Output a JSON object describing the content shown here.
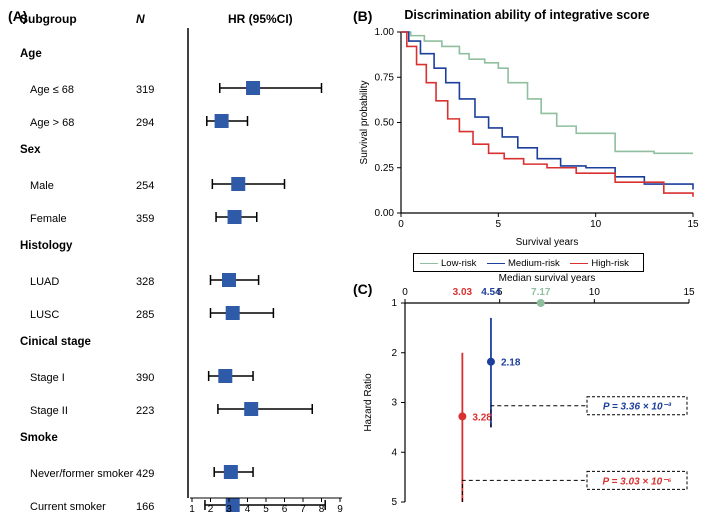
{
  "panelA": {
    "label": "(A)",
    "headers": {
      "subgroup": "Subgroup",
      "n": "N",
      "hr": "HR (95%CI)"
    },
    "x_range": [
      1,
      9
    ],
    "x_ticks": [
      1,
      2,
      3,
      4,
      5,
      6,
      7,
      8,
      9
    ],
    "box_color": "#2e5aa8",
    "groups": [
      {
        "title": "Age",
        "rows": [
          {
            "label": "Age ≤ 68",
            "n": 319,
            "hr": 4.3,
            "lo": 2.5,
            "hi": 8.0
          },
          {
            "label": "Age > 68",
            "n": 294,
            "hr": 2.6,
            "lo": 1.8,
            "hi": 4.0
          }
        ]
      },
      {
        "title": "Sex",
        "rows": [
          {
            "label": "Male",
            "n": 254,
            "hr": 3.5,
            "lo": 2.1,
            "hi": 6.0
          },
          {
            "label": "Female",
            "n": 359,
            "hr": 3.3,
            "lo": 2.3,
            "hi": 4.5
          }
        ]
      },
      {
        "title": "Histology",
        "rows": [
          {
            "label": "LUAD",
            "n": 328,
            "hr": 3.0,
            "lo": 2.0,
            "hi": 4.6
          },
          {
            "label": "LUSC",
            "n": 285,
            "hr": 3.2,
            "lo": 2.0,
            "hi": 5.4
          }
        ]
      },
      {
        "title": "Cinical stage",
        "rows": [
          {
            "label": "Stage I",
            "n": 390,
            "hr": 2.8,
            "lo": 1.9,
            "hi": 4.3
          },
          {
            "label": "Stage II",
            "n": 223,
            "hr": 4.2,
            "lo": 2.4,
            "hi": 7.5
          }
        ]
      },
      {
        "title": "Smoke",
        "rows": [
          {
            "label": "Never/former smoker",
            "n": 429,
            "hr": 3.1,
            "lo": 2.2,
            "hi": 4.3
          },
          {
            "label": "Current smoker",
            "n": 166,
            "hr": 3.2,
            "lo": 1.7,
            "hi": 8.2
          }
        ]
      }
    ]
  },
  "panelB": {
    "label": "(B)",
    "title": "Discrimination ability of integrative score",
    "xlabel": "Survival years",
    "ylabel": "Survival probability",
    "xlim": [
      0,
      15
    ],
    "ylim": [
      0,
      1
    ],
    "xticks": [
      0,
      5,
      10,
      15
    ],
    "yticks": [
      0,
      0.25,
      0.5,
      0.75,
      1.0
    ],
    "ytick_labels": [
      "0.00",
      "0.25",
      "0.50",
      "0.75",
      "1.00"
    ],
    "colors": {
      "low": "#8fbf9f",
      "med": "#1c3f9b",
      "high": "#d93030"
    },
    "curves": {
      "low": [
        [
          0,
          1.0
        ],
        [
          0.5,
          0.98
        ],
        [
          1.2,
          0.95
        ],
        [
          2.1,
          0.92
        ],
        [
          3.0,
          0.88
        ],
        [
          3.5,
          0.85
        ],
        [
          4.3,
          0.83
        ],
        [
          5.0,
          0.8
        ],
        [
          5.5,
          0.72
        ],
        [
          6.5,
          0.63
        ],
        [
          7.2,
          0.55
        ],
        [
          8.0,
          0.48
        ],
        [
          9.0,
          0.44
        ],
        [
          11.0,
          0.34
        ],
        [
          13.0,
          0.33
        ],
        [
          15.0,
          0.33
        ]
      ],
      "med": [
        [
          0,
          1.0
        ],
        [
          0.4,
          0.95
        ],
        [
          1.0,
          0.88
        ],
        [
          1.7,
          0.8
        ],
        [
          2.3,
          0.72
        ],
        [
          3.0,
          0.63
        ],
        [
          3.8,
          0.53
        ],
        [
          4.5,
          0.47
        ],
        [
          5.2,
          0.42
        ],
        [
          6.0,
          0.36
        ],
        [
          7.0,
          0.3
        ],
        [
          8.2,
          0.26
        ],
        [
          9.5,
          0.25
        ],
        [
          11.0,
          0.2
        ],
        [
          12.5,
          0.16
        ],
        [
          15.0,
          0.13
        ]
      ],
      "high": [
        [
          0,
          1.0
        ],
        [
          0.3,
          0.92
        ],
        [
          0.8,
          0.82
        ],
        [
          1.3,
          0.72
        ],
        [
          1.8,
          0.62
        ],
        [
          2.4,
          0.52
        ],
        [
          3.0,
          0.45
        ],
        [
          3.7,
          0.38
        ],
        [
          4.5,
          0.33
        ],
        [
          5.3,
          0.3
        ],
        [
          6.3,
          0.27
        ],
        [
          7.5,
          0.25
        ],
        [
          9.0,
          0.22
        ],
        [
          11.0,
          0.17
        ],
        [
          13.5,
          0.11
        ],
        [
          15.0,
          0.09
        ]
      ]
    },
    "legend": [
      {
        "key": "low",
        "label": "Low-risk"
      },
      {
        "key": "med",
        "label": "Medium-risk"
      },
      {
        "key": "high",
        "label": "High-risk"
      }
    ]
  },
  "panelC": {
    "label": "(C)",
    "top_axis_label": "Median survival years",
    "y_axis_label": "Hazard Ratio",
    "top_xlim": [
      0,
      15
    ],
    "top_xticks": [
      0,
      5,
      10,
      15
    ],
    "ylim": [
      1,
      5
    ],
    "yticks": [
      1,
      2,
      3,
      4,
      5
    ],
    "colors": {
      "low": "#8fbf9f",
      "med": "#1c3f9b",
      "high": "#d93030"
    },
    "points": {
      "low": {
        "median": 7.17,
        "hr": 1.0,
        "lo": 1.0,
        "hi": 1.0,
        "label": "7.17"
      },
      "med": {
        "median": 4.54,
        "hr": 2.18,
        "lo": 1.3,
        "hi": 3.5,
        "label": "2.18",
        "median_label": "4.54"
      },
      "high": {
        "median": 3.03,
        "hr": 3.28,
        "lo": 2.0,
        "hi": 5.0,
        "label": "3.28",
        "median_label": "3.03"
      }
    },
    "pvals": {
      "med": {
        "text": "P = 3.36 × 10⁻³",
        "color": "#1c3f9b"
      },
      "high": {
        "text": "P = 3.03 × 10⁻⁶",
        "color": "#d93030"
      }
    }
  }
}
